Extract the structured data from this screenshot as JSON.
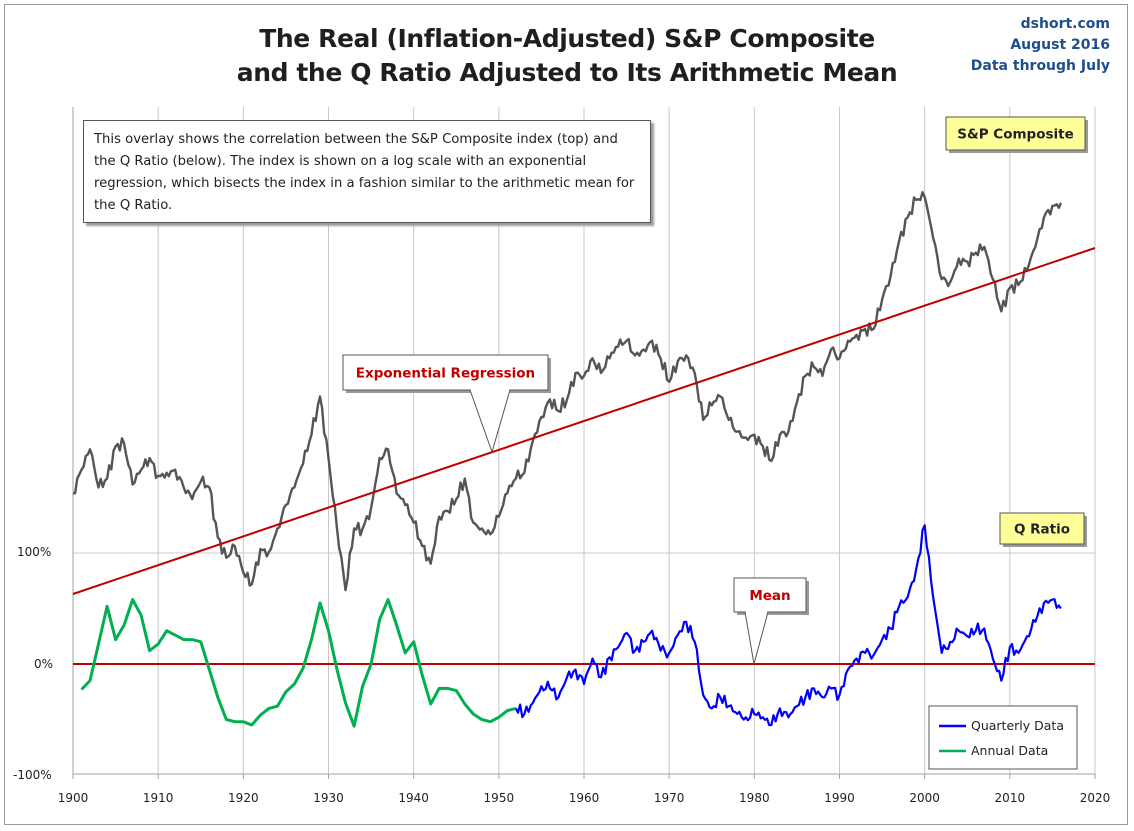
{
  "header": {
    "title_line1": "The Real (Inflation-Adjusted) S&P Composite",
    "title_line2": "and the Q Ratio Adjusted to Its Arithmetic Mean",
    "source_line1": "dshort.com",
    "source_line2": "August 2016",
    "source_line3": "Data through July"
  },
  "note": "This overlay shows the correlation between the S&P Composite index (top) and the Q Ratio (below). The index is shown on a log scale with an exponential regression, which bisects the index in a fashion similar to the arithmetic mean for the Q Ratio.",
  "labels": {
    "sp_composite": "S&P Composite",
    "q_ratio": "Q Ratio",
    "exponential_regression": "Exponential Regression",
    "mean": "Mean"
  },
  "legend": {
    "quarterly": "Quarterly Data",
    "annual": "Annual Data"
  },
  "colors": {
    "sp": "#555555",
    "regression": "#c00000",
    "quarterly": "#0000ff",
    "annual": "#00b050",
    "callout_bg": "#ffff99"
  },
  "chart_data": [
    {
      "type": "line",
      "name_label": "S&P Composite",
      "scale": "log",
      "x_range": [
        1900,
        2020
      ],
      "x_ticks": [
        "1900",
        "1910",
        "1920",
        "1930",
        "1940",
        "1950",
        "1960",
        "1970",
        "1980",
        "1990",
        "2000",
        "2010",
        "2020"
      ],
      "annotation": "Exponential Regression",
      "series": [
        {
          "name": "S&P Composite",
          "shape": [
            [
              1900,
              0.0
            ],
            [
              1901,
              0.08
            ],
            [
              1902,
              0.15
            ],
            [
              1903,
              0.02
            ],
            [
              1904,
              0.05
            ],
            [
              1905,
              0.16
            ],
            [
              1906,
              0.17
            ],
            [
              1907,
              0.03
            ],
            [
              1908,
              0.08
            ],
            [
              1909,
              0.12
            ],
            [
              1910,
              0.06
            ],
            [
              1911,
              0.07
            ],
            [
              1912,
              0.08
            ],
            [
              1913,
              0.02
            ],
            [
              1914,
              -0.02
            ],
            [
              1915,
              0.04
            ],
            [
              1916,
              0.02
            ],
            [
              1917,
              -0.15
            ],
            [
              1918,
              -0.22
            ],
            [
              1919,
              -0.18
            ],
            [
              1920,
              -0.27
            ],
            [
              1921,
              -0.31
            ],
            [
              1922,
              -0.19
            ],
            [
              1923,
              -0.2
            ],
            [
              1924,
              -0.12
            ],
            [
              1925,
              -0.04
            ],
            [
              1926,
              0.02
            ],
            [
              1927,
              0.1
            ],
            [
              1928,
              0.2
            ],
            [
              1929,
              0.33
            ],
            [
              1930,
              0.12
            ],
            [
              1931,
              -0.12
            ],
            [
              1932,
              -0.33
            ],
            [
              1933,
              -0.12
            ],
            [
              1934,
              -0.12
            ],
            [
              1935,
              -0.05
            ],
            [
              1936,
              0.12
            ],
            [
              1937,
              0.15
            ],
            [
              1938,
              0.0
            ],
            [
              1939,
              -0.04
            ],
            [
              1940,
              -0.1
            ],
            [
              1941,
              -0.18
            ],
            [
              1942,
              -0.24
            ],
            [
              1943,
              -0.08
            ],
            [
              1944,
              -0.06
            ],
            [
              1945,
              -0.02
            ],
            [
              1946,
              0.05
            ],
            [
              1947,
              -0.1
            ],
            [
              1948,
              -0.12
            ],
            [
              1949,
              -0.14
            ],
            [
              1950,
              -0.08
            ],
            [
              1951,
              0.0
            ],
            [
              1952,
              0.05
            ],
            [
              1953,
              0.07
            ],
            [
              1954,
              0.18
            ],
            [
              1955,
              0.26
            ],
            [
              1956,
              0.32
            ],
            [
              1957,
              0.28
            ],
            [
              1958,
              0.32
            ],
            [
              1959,
              0.41
            ],
            [
              1960,
              0.4
            ],
            [
              1961,
              0.46
            ],
            [
              1962,
              0.41
            ],
            [
              1963,
              0.46
            ],
            [
              1964,
              0.5
            ],
            [
              1965,
              0.52
            ],
            [
              1966,
              0.47
            ],
            [
              1967,
              0.49
            ],
            [
              1968,
              0.52
            ],
            [
              1969,
              0.46
            ],
            [
              1970,
              0.38
            ],
            [
              1971,
              0.45
            ],
            [
              1972,
              0.47
            ],
            [
              1973,
              0.41
            ],
            [
              1974,
              0.25
            ],
            [
              1975,
              0.3
            ],
            [
              1976,
              0.33
            ],
            [
              1977,
              0.25
            ],
            [
              1978,
              0.21
            ],
            [
              1979,
              0.19
            ],
            [
              1980,
              0.2
            ],
            [
              1981,
              0.16
            ],
            [
              1982,
              0.11
            ],
            [
              1983,
              0.2
            ],
            [
              1984,
              0.21
            ],
            [
              1985,
              0.31
            ],
            [
              1986,
              0.4
            ],
            [
              1987,
              0.43
            ],
            [
              1988,
              0.4
            ],
            [
              1989,
              0.49
            ],
            [
              1990,
              0.46
            ],
            [
              1991,
              0.52
            ],
            [
              1992,
              0.54
            ],
            [
              1993,
              0.56
            ],
            [
              1994,
              0.56
            ],
            [
              1995,
              0.66
            ],
            [
              1996,
              0.74
            ],
            [
              1997,
              0.86
            ],
            [
              1998,
              0.94
            ],
            [
              1999,
              1.0
            ],
            [
              2000,
              1.01
            ],
            [
              2001,
              0.87
            ],
            [
              2002,
              0.73
            ],
            [
              2003,
              0.72
            ],
            [
              2004,
              0.8
            ],
            [
              2005,
              0.79
            ],
            [
              2006,
              0.82
            ],
            [
              2007,
              0.84
            ],
            [
              2008,
              0.73
            ],
            [
              2009,
              0.62
            ],
            [
              2010,
              0.7
            ],
            [
              2011,
              0.71
            ],
            [
              2012,
              0.76
            ],
            [
              2013,
              0.84
            ],
            [
              2014,
              0.94
            ],
            [
              2015,
              0.98
            ],
            [
              2016,
              0.99
            ]
          ]
        },
        {
          "name": "Exponential Regression",
          "points": [
            [
              1900,
              0.0
            ],
            [
              2020,
              0.85
            ]
          ]
        }
      ]
    },
    {
      "type": "line",
      "name_label": "Q Ratio",
      "y_ticks": [
        "100%",
        "0%",
        "-100%"
      ],
      "ylim": [
        -100,
        100
      ],
      "annotation": "Mean",
      "series": [
        {
          "name": "Annual Data",
          "points": [
            [
              1901,
              -23
            ],
            [
              1902,
              -15
            ],
            [
              1903,
              18
            ],
            [
              1904,
              52
            ],
            [
              1905,
              22
            ],
            [
              1906,
              35
            ],
            [
              1907,
              58
            ],
            [
              1908,
              44
            ],
            [
              1909,
              12
            ],
            [
              1910,
              18
            ],
            [
              1911,
              30
            ],
            [
              1912,
              26
            ],
            [
              1913,
              22
            ],
            [
              1914,
              22
            ],
            [
              1915,
              20
            ],
            [
              1916,
              -5
            ],
            [
              1917,
              -30
            ],
            [
              1918,
              -50
            ],
            [
              1919,
              -52
            ],
            [
              1920,
              -52
            ],
            [
              1921,
              -55
            ],
            [
              1922,
              -46
            ],
            [
              1923,
              -40
            ],
            [
              1924,
              -38
            ],
            [
              1925,
              -25
            ],
            [
              1926,
              -18
            ],
            [
              1927,
              -4
            ],
            [
              1928,
              22
            ],
            [
              1929,
              55
            ],
            [
              1930,
              30
            ],
            [
              1931,
              -5
            ],
            [
              1932,
              -35
            ],
            [
              1933,
              -56
            ],
            [
              1934,
              -20
            ],
            [
              1935,
              0
            ],
            [
              1936,
              40
            ],
            [
              1937,
              58
            ],
            [
              1938,
              35
            ],
            [
              1939,
              10
            ],
            [
              1940,
              20
            ],
            [
              1941,
              -10
            ],
            [
              1942,
              -36
            ],
            [
              1943,
              -22
            ],
            [
              1944,
              -22
            ],
            [
              1945,
              -24
            ],
            [
              1946,
              -36
            ],
            [
              1947,
              -45
            ],
            [
              1948,
              -50
            ],
            [
              1949,
              -52
            ],
            [
              1950,
              -48
            ],
            [
              1951,
              -42
            ],
            [
              1952,
              -40
            ]
          ]
        },
        {
          "name": "Quarterly Data",
          "points": [
            [
              1952,
              -40
            ],
            [
              1953,
              -45
            ],
            [
              1954,
              -35
            ],
            [
              1955,
              -20
            ],
            [
              1956,
              -22
            ],
            [
              1957,
              -30
            ],
            [
              1958,
              -12
            ],
            [
              1959,
              -5
            ],
            [
              1960,
              -18
            ],
            [
              1961,
              5
            ],
            [
              1962,
              -12
            ],
            [
              1963,
              6
            ],
            [
              1964,
              15
            ],
            [
              1965,
              28
            ],
            [
              1966,
              12
            ],
            [
              1967,
              20
            ],
            [
              1968,
              30
            ],
            [
              1969,
              12
            ],
            [
              1970,
              10
            ],
            [
              1971,
              26
            ],
            [
              1972,
              38
            ],
            [
              1973,
              20
            ],
            [
              1974,
              -28
            ],
            [
              1975,
              -40
            ],
            [
              1976,
              -30
            ],
            [
              1977,
              -38
            ],
            [
              1978,
              -45
            ],
            [
              1979,
              -48
            ],
            [
              1980,
              -45
            ],
            [
              1981,
              -48
            ],
            [
              1982,
              -55
            ],
            [
              1983,
              -40
            ],
            [
              1984,
              -48
            ],
            [
              1985,
              -38
            ],
            [
              1986,
              -30
            ],
            [
              1987,
              -22
            ],
            [
              1988,
              -30
            ],
            [
              1989,
              -22
            ],
            [
              1990,
              -28
            ],
            [
              1991,
              -5
            ],
            [
              1992,
              5
            ],
            [
              1993,
              10
            ],
            [
              1994,
              8
            ],
            [
              1995,
              22
            ],
            [
              1996,
              32
            ],
            [
              1997,
              52
            ],
            [
              1998,
              60
            ],
            [
              1999,
              85
            ],
            [
              2000,
              125
            ],
            [
              2001,
              60
            ],
            [
              2002,
              10
            ],
            [
              2003,
              20
            ],
            [
              2004,
              30
            ],
            [
              2005,
              25
            ],
            [
              2006,
              30
            ],
            [
              2007,
              32
            ],
            [
              2008,
              5
            ],
            [
              2009,
              -15
            ],
            [
              2010,
              15
            ],
            [
              2011,
              10
            ],
            [
              2012,
              25
            ],
            [
              2013,
              38
            ],
            [
              2014,
              55
            ],
            [
              2015,
              58
            ],
            [
              2016,
              50
            ]
          ]
        },
        {
          "name": "Mean",
          "points": [
            [
              1900,
              0
            ],
            [
              2020,
              0
            ]
          ]
        }
      ]
    }
  ]
}
